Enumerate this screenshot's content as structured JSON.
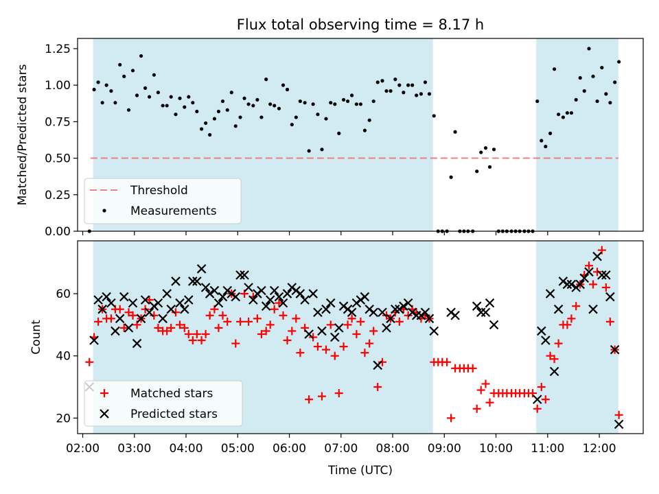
{
  "title": "Flux total observing time = 8.17 h",
  "colors": {
    "band": "#add8e6",
    "threshold": "#f08080",
    "measurement": "#000000",
    "matched": "#ff0000",
    "predicted": "#000000"
  },
  "chart_data": [
    {
      "type": "scatter",
      "title": "Flux total observing time = 8.17 h",
      "ylabel": "Matched/Predicted stars",
      "xlabel": "",
      "xlim": [
        1.9,
        12.85
      ],
      "ylim": [
        0.0,
        1.32
      ],
      "yticks": [
        0.0,
        0.25,
        0.5,
        0.75,
        1.0,
        1.25
      ],
      "ytick_labels": [
        "0.00",
        "0.25",
        "0.50",
        "0.75",
        "1.00",
        "1.25"
      ],
      "shaded_intervals": [
        [
          2.2,
          8.78
        ],
        [
          10.78,
          12.37
        ]
      ],
      "threshold": {
        "name": "Threshold",
        "value": 0.5,
        "x": [
          2.15,
          12.37
        ],
        "style": "dashed"
      },
      "legend": {
        "entries": [
          "Threshold",
          "Measurements"
        ],
        "position": "lower-left"
      },
      "series": [
        {
          "name": "Measurements",
          "marker": "dot",
          "x": [
            2.13,
            2.22,
            2.3,
            2.38,
            2.46,
            2.55,
            2.63,
            2.72,
            2.8,
            2.89,
            2.97,
            3.05,
            3.13,
            3.21,
            3.29,
            3.38,
            3.46,
            3.55,
            3.63,
            3.71,
            3.8,
            3.88,
            3.97,
            4.05,
            4.13,
            4.21,
            4.3,
            4.38,
            4.46,
            4.55,
            4.63,
            4.71,
            4.8,
            4.88,
            4.96,
            5.05,
            5.13,
            5.21,
            5.3,
            5.38,
            5.46,
            5.55,
            5.63,
            5.71,
            5.8,
            5.88,
            5.96,
            6.05,
            6.13,
            6.21,
            6.3,
            6.38,
            6.46,
            6.55,
            6.63,
            6.71,
            6.8,
            6.88,
            6.96,
            7.05,
            7.13,
            7.21,
            7.3,
            7.38,
            7.46,
            7.55,
            7.63,
            7.71,
            7.8,
            7.88,
            7.96,
            8.05,
            8.13,
            8.21,
            8.3,
            8.38,
            8.46,
            8.55,
            8.63,
            8.71,
            8.8,
            8.88,
            8.96,
            9.05,
            9.13,
            9.21,
            9.3,
            9.38,
            9.46,
            9.55,
            9.63,
            9.71,
            9.8,
            9.88,
            9.96,
            10.05,
            10.13,
            10.21,
            10.3,
            10.38,
            10.46,
            10.55,
            10.63,
            10.71,
            10.8,
            10.88,
            10.96,
            11.05,
            11.13,
            11.21,
            11.3,
            11.38,
            11.46,
            11.55,
            11.63,
            11.71,
            11.8,
            11.88,
            11.96,
            12.05,
            12.13,
            12.21,
            12.3,
            12.38
          ],
          "y": [
            0.0,
            0.97,
            1.02,
            0.88,
            1.0,
            0.96,
            0.88,
            1.14,
            1.06,
            0.83,
            1.1,
            0.93,
            1.2,
            0.98,
            0.92,
            1.07,
            0.95,
            0.86,
            0.86,
            0.92,
            0.8,
            0.91,
            0.85,
            0.92,
            0.88,
            0.82,
            0.7,
            0.74,
            0.66,
            0.77,
            0.82,
            0.89,
            0.83,
            0.95,
            0.72,
            0.78,
            0.91,
            0.87,
            0.86,
            0.9,
            0.78,
            1.04,
            0.87,
            0.86,
            0.84,
            1.0,
            0.97,
            0.73,
            0.78,
            0.89,
            0.88,
            0.55,
            0.87,
            0.8,
            0.56,
            0.77,
            0.88,
            0.87,
            0.67,
            0.9,
            0.89,
            0.93,
            0.87,
            0.87,
            0.69,
            0.76,
            0.89,
            1.02,
            1.03,
            0.96,
            0.96,
            1.04,
            1.0,
            0.95,
            1.0,
            1.0,
            0.93,
            0.94,
            1.02,
            0.94,
            0.79,
            0.0,
            0.0,
            0.0,
            0.37,
            0.68,
            0.0,
            0.0,
            0.0,
            0.0,
            0.41,
            0.54,
            0.57,
            0.44,
            0.56,
            0.0,
            0.0,
            0.0,
            0.0,
            0.0,
            0.0,
            0.0,
            0.0,
            0.0,
            0.89,
            0.62,
            0.58,
            0.67,
            1.11,
            0.8,
            0.78,
            0.81,
            0.81,
            0.9,
            1.05,
            0.96,
            1.25,
            1.06,
            0.89,
            1.12,
            0.94,
            0.88,
            1.02,
            1.16
          ]
        }
      ]
    },
    {
      "type": "scatter",
      "title": "",
      "ylabel": "Count",
      "xlabel": "Time (UTC)",
      "xlim": [
        1.9,
        12.85
      ],
      "ylim": [
        15,
        77
      ],
      "yticks": [
        20,
        40,
        60
      ],
      "ytick_labels": [
        "20",
        "40",
        "60"
      ],
      "xticks": [
        2,
        3,
        4,
        5,
        6,
        7,
        8,
        9,
        10,
        11,
        12
      ],
      "xtick_labels": [
        "02:00",
        "03:00",
        "04:00",
        "05:00",
        "06:00",
        "07:00",
        "08:00",
        "09:00",
        "10:00",
        "11:00",
        "12:00"
      ],
      "shaded_intervals": [
        [
          2.2,
          8.78
        ],
        [
          10.78,
          12.37
        ]
      ],
      "legend": {
        "entries": [
          "Matched stars",
          "Predicted stars"
        ],
        "position": "lower-left"
      },
      "series": [
        {
          "name": "Matched stars",
          "marker": "plus",
          "x": [
            2.13,
            2.22,
            2.3,
            2.38,
            2.46,
            2.55,
            2.63,
            2.72,
            2.8,
            2.89,
            2.97,
            3.05,
            3.13,
            3.21,
            3.29,
            3.38,
            3.46,
            3.55,
            3.63,
            3.71,
            3.8,
            3.88,
            3.97,
            4.05,
            4.13,
            4.21,
            4.3,
            4.38,
            4.46,
            4.55,
            4.63,
            4.71,
            4.8,
            4.88,
            4.96,
            5.05,
            5.13,
            5.21,
            5.3,
            5.38,
            5.46,
            5.55,
            5.63,
            5.71,
            5.8,
            5.88,
            5.96,
            6.05,
            6.13,
            6.21,
            6.3,
            6.38,
            6.46,
            6.55,
            6.63,
            6.71,
            6.8,
            6.88,
            6.96,
            7.05,
            7.13,
            7.21,
            7.3,
            7.38,
            7.46,
            7.55,
            7.63,
            7.71,
            7.8,
            7.88,
            7.96,
            8.05,
            8.13,
            8.21,
            8.3,
            8.38,
            8.46,
            8.55,
            8.63,
            8.71,
            8.8,
            8.88,
            8.96,
            9.05,
            9.13,
            9.21,
            9.3,
            9.38,
            9.46,
            9.55,
            9.63,
            9.71,
            9.8,
            9.88,
            9.96,
            10.05,
            10.13,
            10.21,
            10.3,
            10.38,
            10.46,
            10.55,
            10.63,
            10.71,
            10.8,
            10.88,
            10.96,
            11.05,
            11.13,
            11.21,
            11.3,
            11.38,
            11.46,
            11.55,
            11.63,
            11.71,
            11.8,
            11.88,
            11.96,
            12.05,
            12.13,
            12.21,
            12.3,
            12.38
          ],
          "y": [
            38,
            46,
            51,
            55,
            52,
            52,
            55,
            55,
            49,
            54,
            53,
            50,
            52,
            55,
            58,
            53,
            49,
            48,
            48,
            49,
            54,
            50,
            49,
            47,
            45,
            47,
            45,
            47,
            53,
            55,
            49,
            53,
            51,
            60,
            44,
            51,
            60,
            51,
            59,
            52,
            47,
            48,
            50,
            55,
            57,
            53,
            45,
            48,
            52,
            41,
            49,
            26,
            46,
            43,
            27,
            42,
            50,
            40,
            28,
            43,
            50,
            52,
            47,
            51,
            41,
            44,
            48,
            30,
            38,
            53,
            52,
            54,
            51,
            55,
            53,
            55,
            54,
            52,
            53,
            52,
            38,
            38,
            38,
            38,
            20,
            36,
            36,
            36,
            36,
            36,
            23,
            29,
            31,
            25,
            28,
            28,
            28,
            28,
            28,
            28,
            28,
            28,
            28,
            28,
            23,
            30,
            26,
            40,
            39,
            44,
            50,
            50,
            52,
            56,
            63,
            66,
            69,
            63,
            67,
            74,
            62,
            51,
            42,
            21
          ]
        },
        {
          "name": "Predicted stars",
          "marker": "x",
          "x": [
            2.13,
            2.22,
            2.3,
            2.38,
            2.46,
            2.55,
            2.63,
            2.72,
            2.8,
            2.89,
            2.97,
            3.05,
            3.13,
            3.21,
            3.29,
            3.38,
            3.46,
            3.55,
            3.63,
            3.71,
            3.8,
            3.88,
            3.97,
            4.05,
            4.13,
            4.21,
            4.3,
            4.38,
            4.46,
            4.55,
            4.63,
            4.71,
            4.8,
            4.88,
            4.96,
            5.05,
            5.13,
            5.21,
            5.3,
            5.38,
            5.46,
            5.55,
            5.63,
            5.71,
            5.8,
            5.88,
            5.96,
            6.05,
            6.13,
            6.21,
            6.3,
            6.38,
            6.46,
            6.55,
            6.63,
            6.71,
            6.8,
            6.88,
            6.96,
            7.05,
            7.13,
            7.21,
            7.3,
            7.38,
            7.46,
            7.55,
            7.63,
            7.71,
            7.8,
            7.88,
            7.96,
            8.05,
            8.13,
            8.21,
            8.3,
            8.38,
            8.46,
            8.55,
            8.63,
            8.71,
            8.8,
            9.13,
            9.21,
            9.63,
            9.71,
            9.8,
            9.88,
            9.96,
            10.8,
            10.88,
            10.96,
            11.05,
            11.13,
            11.21,
            11.3,
            11.38,
            11.46,
            11.55,
            11.63,
            11.71,
            11.8,
            11.88,
            11.96,
            12.05,
            12.13,
            12.21,
            12.3,
            12.38
          ],
          "y": [
            30,
            45,
            58,
            55,
            59,
            57,
            48,
            52,
            59,
            49,
            57,
            44,
            52,
            58,
            54,
            56,
            57,
            52,
            60,
            55,
            64,
            57,
            55,
            58,
            64,
            64,
            68,
            62,
            60,
            61,
            57,
            59,
            61,
            60,
            59,
            66,
            66,
            62,
            58,
            60,
            61,
            56,
            58,
            61,
            59,
            57,
            60,
            62,
            61,
            60,
            58,
            47,
            60,
            54,
            48,
            55,
            57,
            46,
            49,
            56,
            55,
            54,
            57,
            58,
            59,
            55,
            54,
            37,
            54,
            49,
            52,
            55,
            55,
            56,
            57,
            54,
            53,
            53,
            54,
            52,
            48,
            54,
            53,
            56,
            54,
            54,
            57,
            50,
            26,
            48,
            45,
            60,
            35,
            55,
            64,
            63,
            63,
            62,
            63,
            65,
            67,
            55,
            72,
            66,
            66,
            59,
            42,
            18
          ]
        }
      ]
    }
  ]
}
